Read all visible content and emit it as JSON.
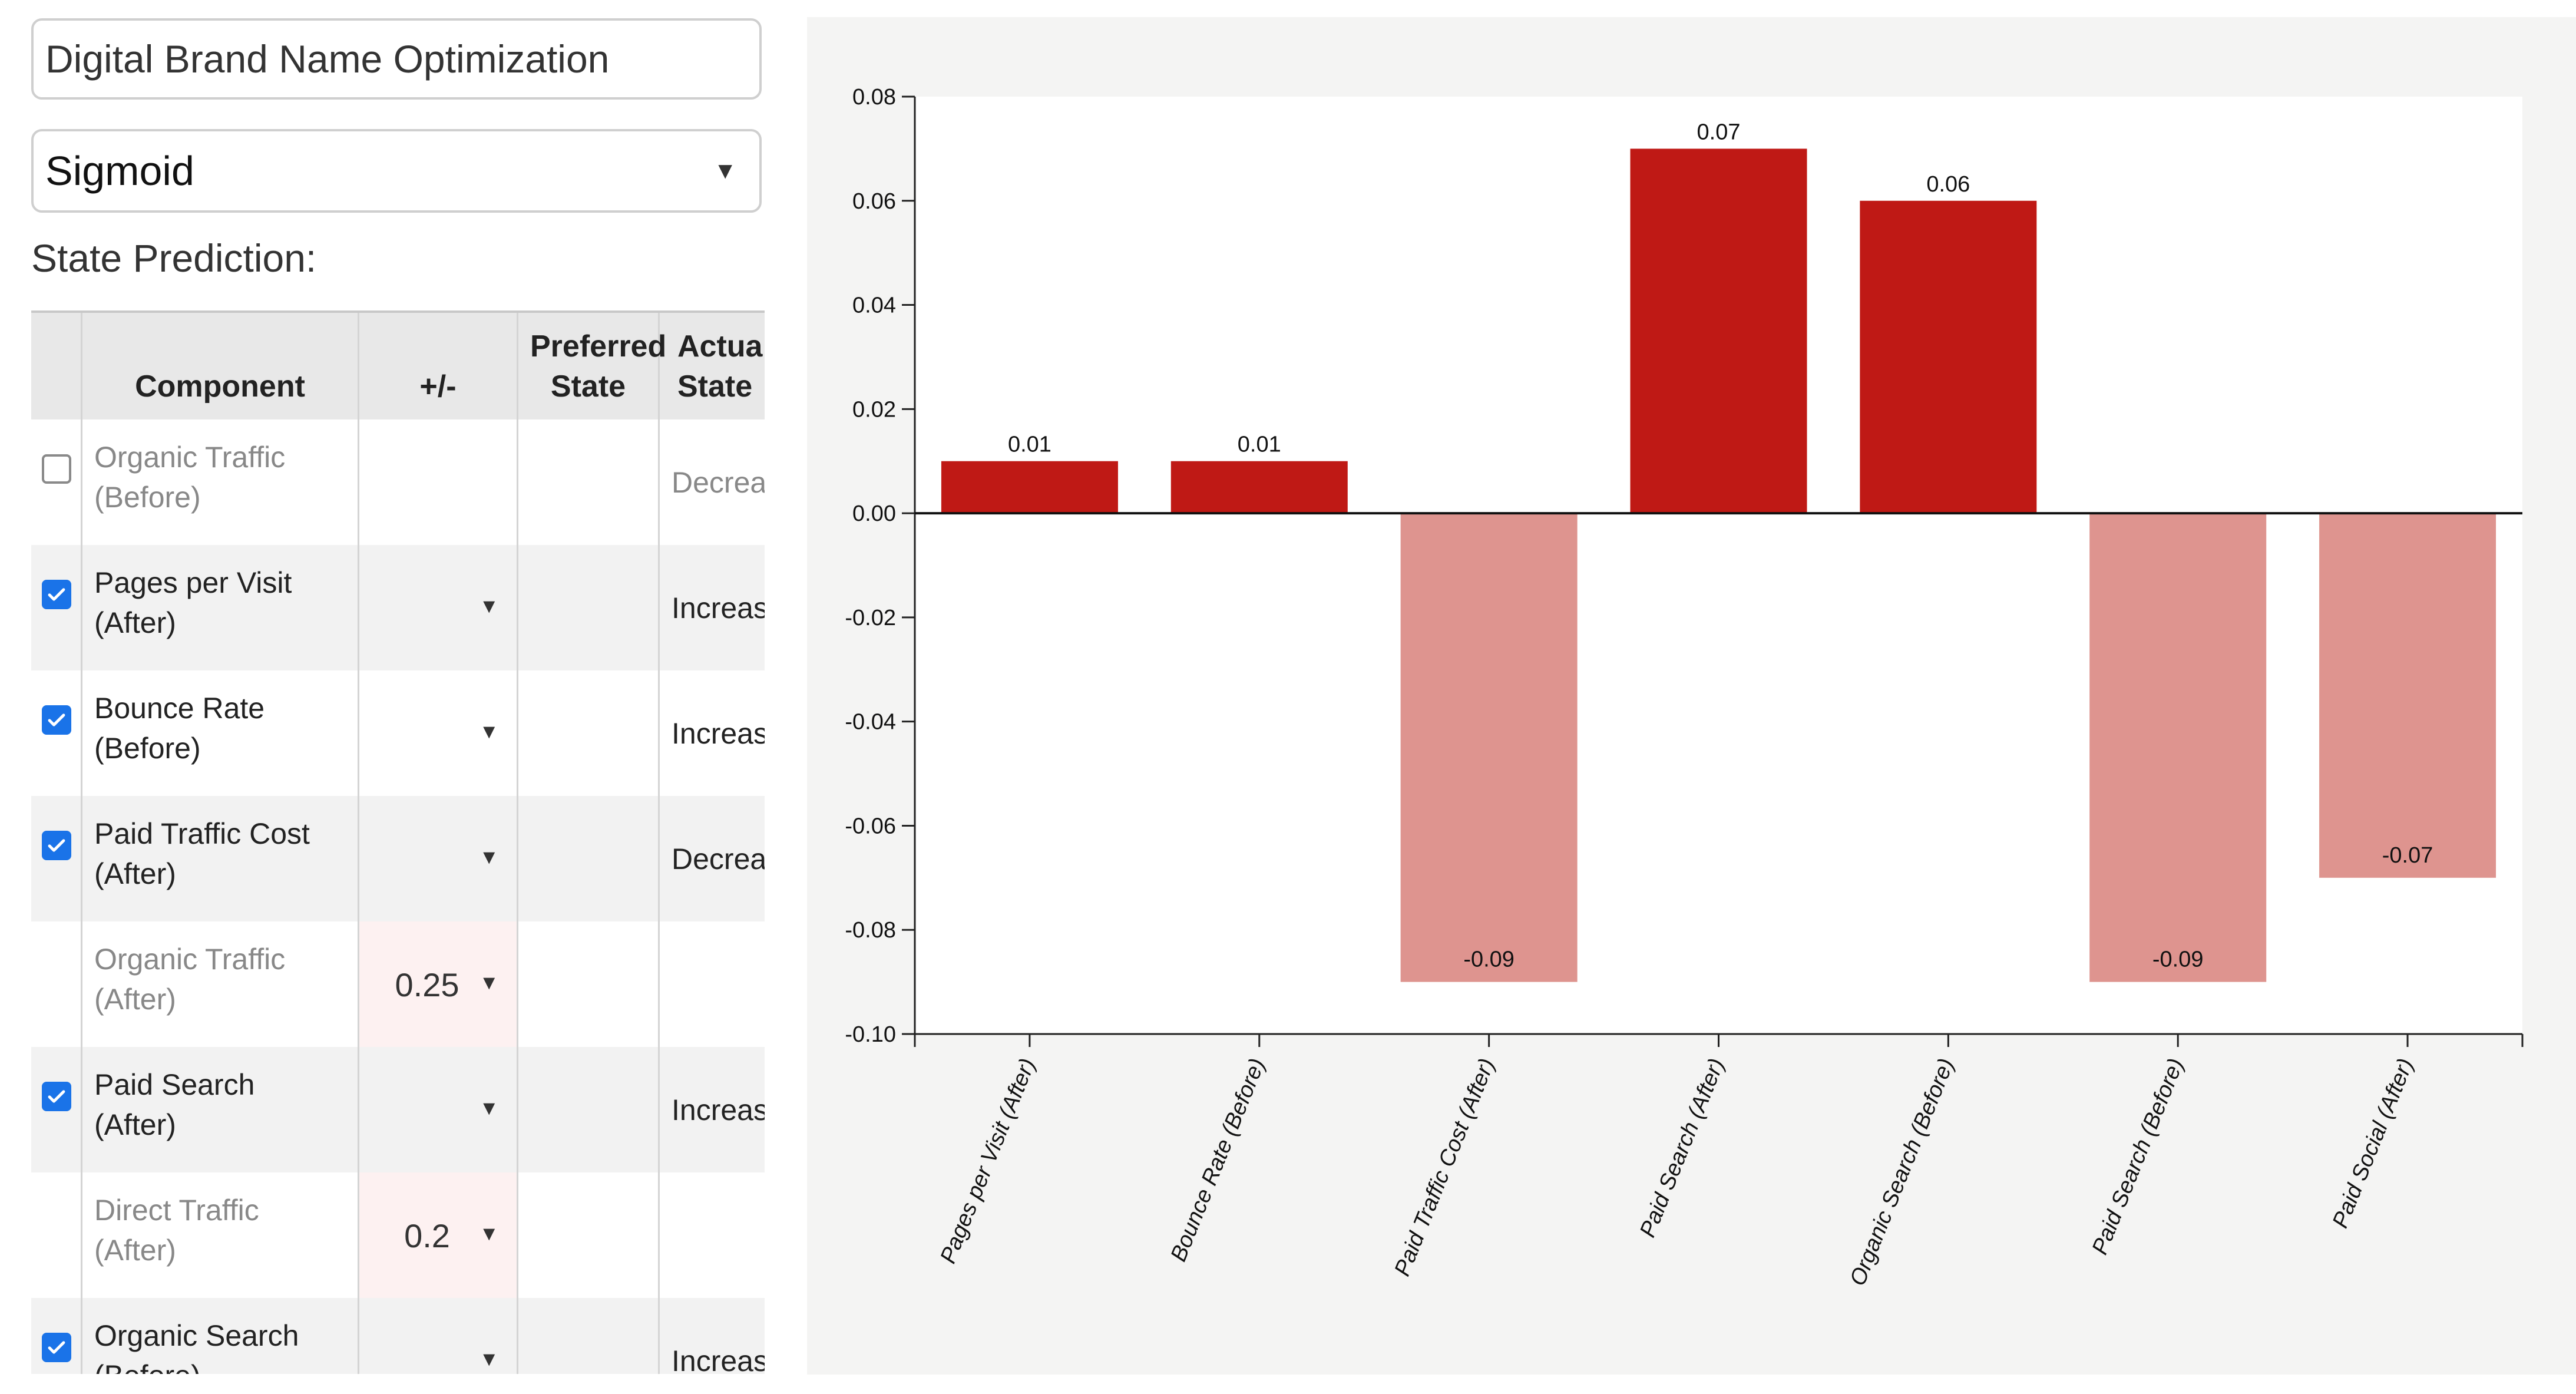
{
  "title_input": {
    "value": "Digital Brand Name Optimization"
  },
  "model_select": {
    "value": "Sigmoid"
  },
  "section_title": "State Prediction:",
  "table": {
    "headers": {
      "component": "Component",
      "plus_minus": "+/-",
      "preferred_state": "Preferred State",
      "actual_state": "Actual State"
    },
    "rows": [
      {
        "checkbox": "off",
        "component_line1": "Organic Traffic",
        "component_line2": "(Before)",
        "muted": true,
        "plus_minus": "",
        "dropdown": false,
        "actual_state": "Decrease"
      },
      {
        "checkbox": "on",
        "component_line1": "Pages per Visit",
        "component_line2": "(After)",
        "muted": false,
        "plus_minus": "",
        "dropdown": true,
        "actual_state": "Increase"
      },
      {
        "checkbox": "on",
        "component_line1": "Bounce Rate",
        "component_line2": "(Before)",
        "muted": false,
        "plus_minus": "",
        "dropdown": true,
        "actual_state": "Increase"
      },
      {
        "checkbox": "on",
        "component_line1": "Paid Traffic Cost",
        "component_line2": "(After)",
        "muted": false,
        "plus_minus": "",
        "dropdown": true,
        "actual_state": "Decrease"
      },
      {
        "checkbox": "none",
        "component_line1": "Organic Traffic",
        "component_line2": "(After)",
        "muted": true,
        "plus_minus": "0.25",
        "dropdown": true,
        "actual_state": ""
      },
      {
        "checkbox": "on",
        "component_line1": "Paid Search",
        "component_line2": "(After)",
        "muted": false,
        "plus_minus": "",
        "dropdown": true,
        "actual_state": "Increase"
      },
      {
        "checkbox": "none",
        "component_line1": "Direct Traffic",
        "component_line2": "(After)",
        "muted": true,
        "plus_minus": "0.2",
        "dropdown": true,
        "actual_state": ""
      },
      {
        "checkbox": "on",
        "component_line1": "Organic Search",
        "component_line2": "(Before)",
        "muted": false,
        "plus_minus": "",
        "dropdown": true,
        "actual_state": "Increase"
      }
    ]
  },
  "colors": {
    "positive_bar": "#bf1915",
    "negative_bar": "#de948f",
    "checkbox_on": "#1a73e8"
  },
  "chart_data": {
    "type": "bar",
    "title": "",
    "xlabel": "",
    "ylabel": "",
    "categories": [
      "Pages per Visit (After)",
      "Bounce Rate (Before)",
      "Paid Traffic Cost (After)",
      "Paid Search (After)",
      "Organic Search (Before)",
      "Paid Search (Before)",
      "Paid Social (After)"
    ],
    "values": [
      0.01,
      0.01,
      -0.09,
      0.07,
      0.06,
      -0.09,
      -0.07
    ],
    "data_labels": [
      "0.01",
      "0.01",
      "-0.09",
      "0.07",
      "0.06",
      "-0.09",
      "-0.07"
    ],
    "ylim": [
      -0.1,
      0.08
    ],
    "y_ticks": [
      "0.08",
      "0.06",
      "0.04",
      "0.02",
      "0.00",
      "-0.02",
      "-0.04",
      "-0.06",
      "-0.08",
      "-0.10"
    ],
    "grid": false,
    "legend": "none"
  }
}
